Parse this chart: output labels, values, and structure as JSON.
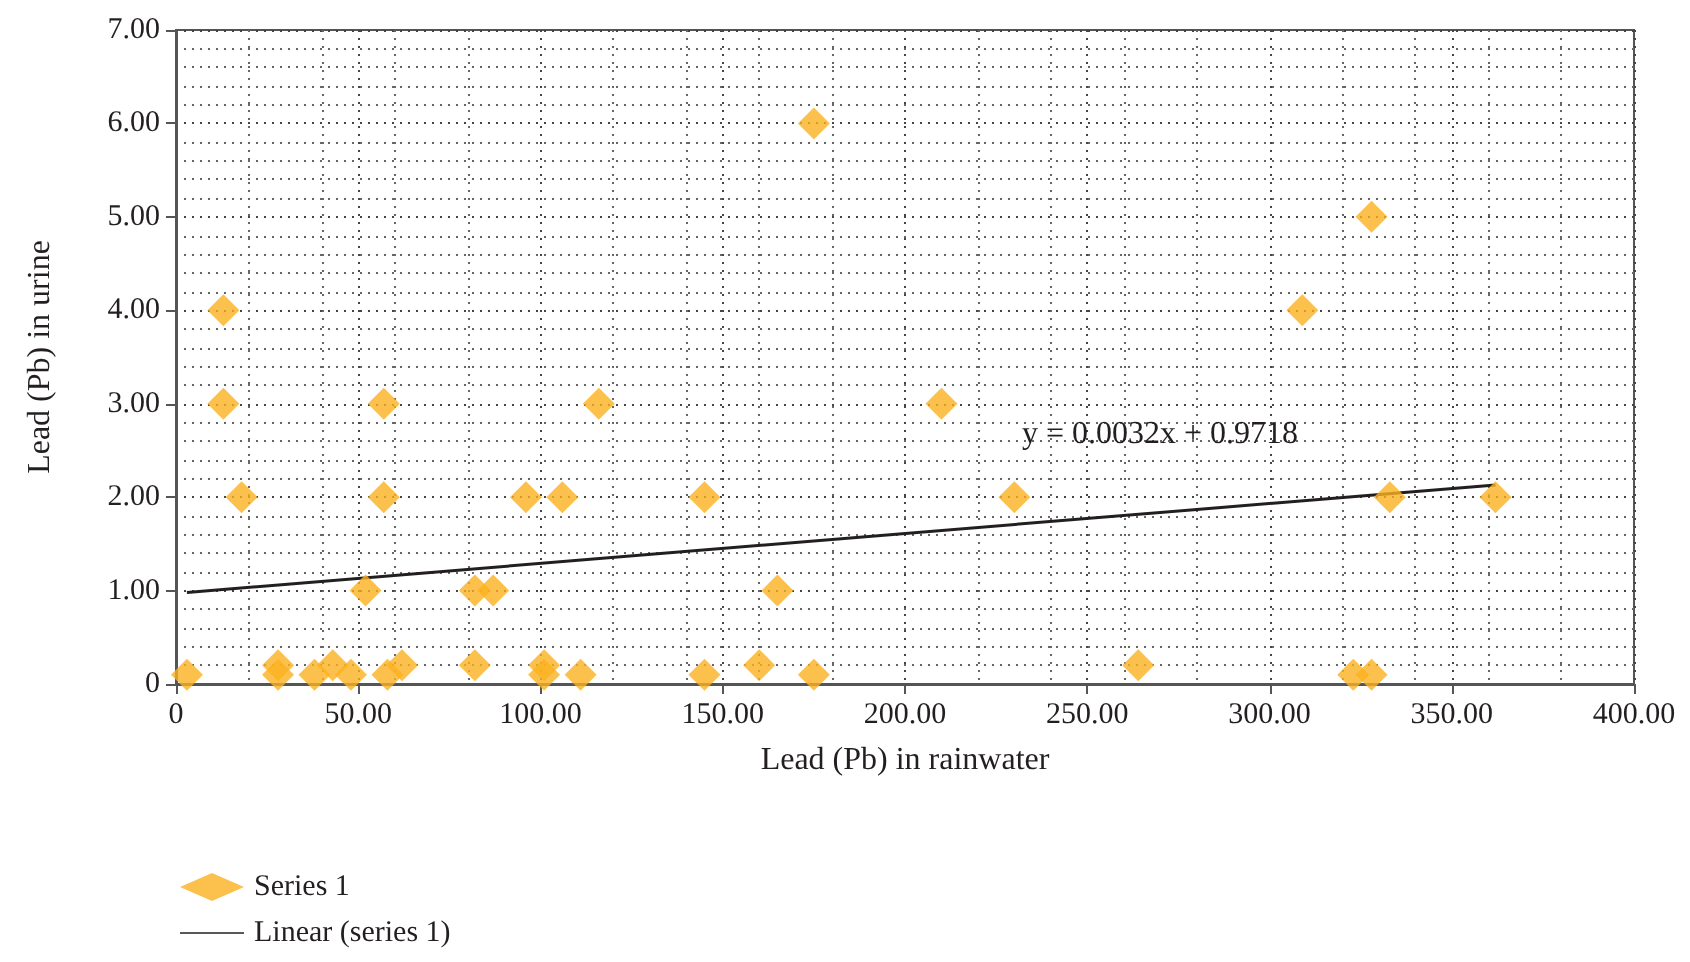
{
  "chart_data": {
    "type": "scatter",
    "xlabel": "Lead (Pb) in rainwater",
    "ylabel": "Lead (Pb) in urine",
    "xlim": [
      0,
      400
    ],
    "xticks": [
      0,
      {
        "value": 50,
        "label": "50.00"
      },
      {
        "value": 100,
        "label": "100.00"
      },
      {
        "value": 150,
        "label": "150.00"
      },
      {
        "value": 200,
        "label": "200.00"
      },
      {
        "value": 250,
        "label": "250.00"
      },
      {
        "value": 300,
        "label": "300.00"
      },
      {
        "value": 350,
        "label": "350.00"
      },
      {
        "value": 400,
        "label": "400.00"
      }
    ],
    "ylim": [
      0,
      7
    ],
    "yticks": [
      0,
      {
        "value": 1,
        "label": "1.00"
      },
      {
        "value": 2,
        "label": "2.00"
      },
      {
        "value": 3,
        "label": "3.00"
      },
      {
        "value": 4,
        "label": "4.00"
      },
      {
        "value": 5,
        "label": "5.00"
      },
      {
        "value": 6,
        "label": "6.00"
      },
      {
        "value": 7,
        "label": "7.00"
      }
    ],
    "series": [
      {
        "name": "Series 1",
        "color": "#fbb21f",
        "marker": "diamond",
        "x": [
          3,
          13,
          13,
          18,
          28,
          28,
          38,
          43,
          48,
          52,
          57,
          57,
          58,
          62,
          82,
          87,
          82,
          96,
          101,
          101,
          106,
          111,
          116,
          145,
          145,
          160,
          165,
          175,
          175,
          210,
          230,
          264,
          309,
          323,
          328,
          328,
          333,
          362
        ],
        "values": [
          0.1,
          4,
          3,
          2,
          0.2,
          0.1,
          0.1,
          0.2,
          0.1,
          1,
          3,
          2,
          0.1,
          0.2,
          1,
          1,
          0.2,
          2,
          0.2,
          0.1,
          2,
          0.1,
          3,
          2,
          0.1,
          0.2,
          1,
          6,
          0.1,
          3,
          2,
          0.2,
          4,
          0.1,
          5,
          0.1,
          2,
          2
        ]
      },
      {
        "name": "Linear (series 1)",
        "type": "line",
        "color": "#231f20",
        "marker": "none",
        "line_style": "solid",
        "x": [
          3,
          362
        ],
        "values": [
          0.98,
          2.13
        ]
      }
    ],
    "annotations": [
      "y = 0.0032x + 0.9718"
    ],
    "grid": true,
    "legend": "bottom left"
  }
}
